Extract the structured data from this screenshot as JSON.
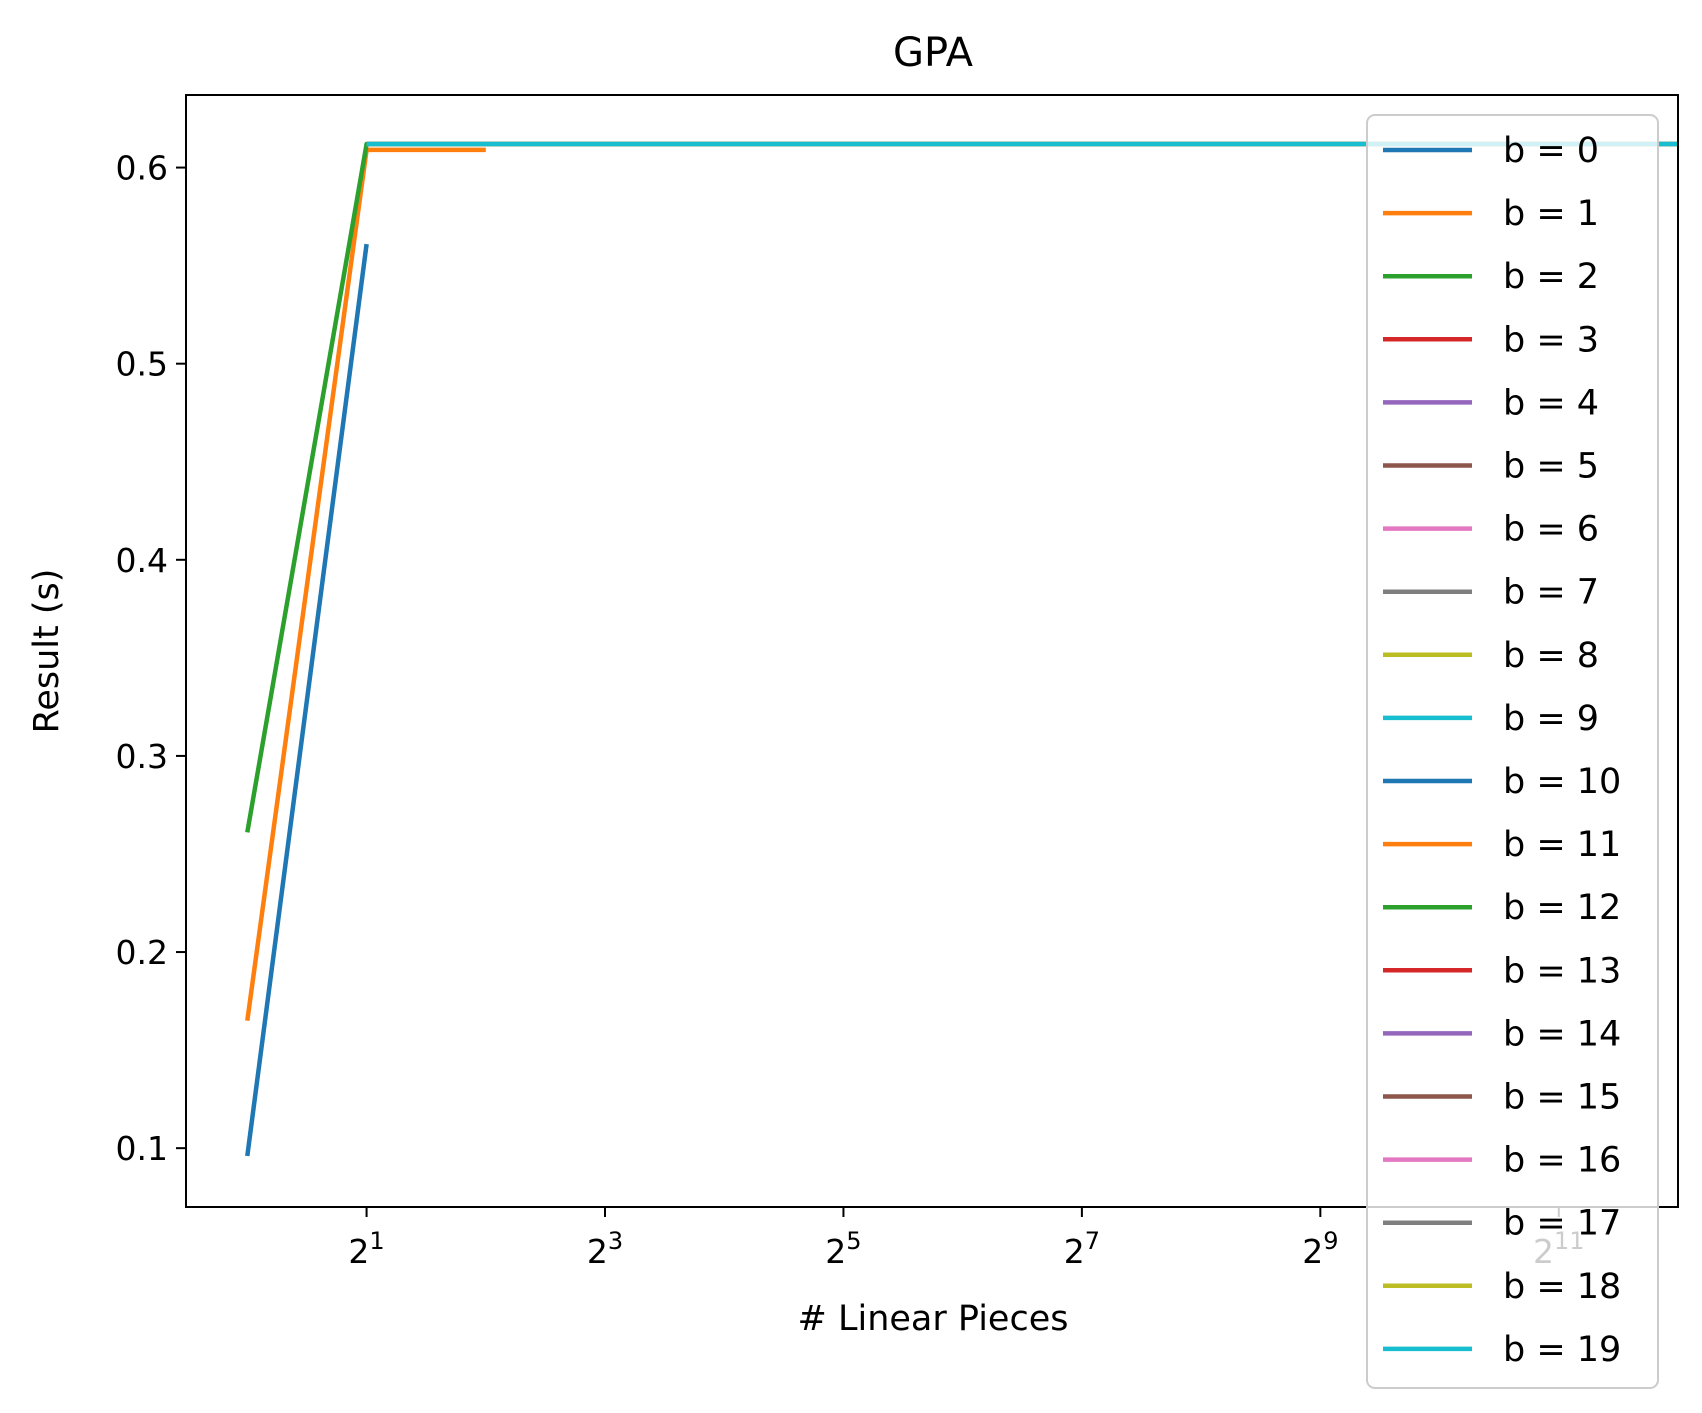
{
  "chart_data": {
    "type": "line",
    "title": "GPA",
    "xlabel": "# Linear Pieces",
    "ylabel": "Result (s)",
    "xscale": "log2",
    "xlim": [
      0.7,
      4096
    ],
    "ylim": [
      0.07,
      0.637
    ],
    "x_ticks": [
      {
        "value": 2,
        "base": "2",
        "exp": "1"
      },
      {
        "value": 8,
        "base": "2",
        "exp": "3"
      },
      {
        "value": 32,
        "base": "2",
        "exp": "5"
      },
      {
        "value": 128,
        "base": "2",
        "exp": "7"
      },
      {
        "value": 512,
        "base": "2",
        "exp": "9"
      },
      {
        "value": 2048,
        "base": "2",
        "exp": "11"
      }
    ],
    "y_ticks": [
      "0.1",
      "0.2",
      "0.3",
      "0.4",
      "0.5",
      "0.6"
    ],
    "grid": false,
    "legend_position": "right",
    "series": [
      {
        "name": "b = 0",
        "color": "#1f77b4",
        "points": [
          [
            1,
            0.096
          ],
          [
            2,
            0.561
          ]
        ]
      },
      {
        "name": "b = 1",
        "color": "#ff7f0e",
        "points": [
          [
            1,
            0.165
          ],
          [
            2,
            0.609
          ],
          [
            4,
            0.609
          ]
        ]
      },
      {
        "name": "b = 2",
        "color": "#2ca02c",
        "points": [
          [
            1,
            0.261
          ],
          [
            2,
            0.612
          ],
          [
            4,
            0.612
          ],
          [
            8,
            0.612
          ],
          [
            16,
            0.612
          ],
          [
            32,
            0.612
          ],
          [
            64,
            0.612
          ],
          [
            128,
            0.612
          ],
          [
            256,
            0.612
          ],
          [
            512,
            0.612
          ],
          [
            1024,
            0.612
          ],
          [
            2048,
            0.612
          ],
          [
            4096,
            0.612
          ]
        ]
      },
      {
        "name": "b = 3",
        "color": "#d62728",
        "points": [
          [
            2,
            0.612
          ],
          [
            4096,
            0.612
          ]
        ]
      },
      {
        "name": "b = 4",
        "color": "#9467bd",
        "points": [
          [
            2,
            0.612
          ],
          [
            4096,
            0.612
          ]
        ]
      },
      {
        "name": "b = 5",
        "color": "#8c564b",
        "points": [
          [
            2,
            0.612
          ],
          [
            4096,
            0.612
          ]
        ]
      },
      {
        "name": "b = 6",
        "color": "#e377c2",
        "points": [
          [
            2,
            0.612
          ],
          [
            4096,
            0.612
          ]
        ]
      },
      {
        "name": "b = 7",
        "color": "#7f7f7f",
        "points": [
          [
            2,
            0.612
          ],
          [
            4096,
            0.612
          ]
        ]
      },
      {
        "name": "b = 8",
        "color": "#bcbd22",
        "points": [
          [
            2,
            0.612
          ],
          [
            4096,
            0.612
          ]
        ]
      },
      {
        "name": "b = 9",
        "color": "#17becf",
        "points": [
          [
            2,
            0.612
          ],
          [
            4096,
            0.612
          ]
        ]
      },
      {
        "name": "b = 10",
        "color": "#1f77b4",
        "points": [
          [
            2,
            0.612
          ],
          [
            4096,
            0.612
          ]
        ]
      },
      {
        "name": "b = 11",
        "color": "#ff7f0e",
        "points": [
          [
            2,
            0.612
          ],
          [
            4096,
            0.612
          ]
        ]
      },
      {
        "name": "b = 12",
        "color": "#2ca02c",
        "points": [
          [
            2,
            0.612
          ],
          [
            4096,
            0.612
          ]
        ]
      },
      {
        "name": "b = 13",
        "color": "#d62728",
        "points": [
          [
            2,
            0.612
          ],
          [
            4096,
            0.612
          ]
        ]
      },
      {
        "name": "b = 14",
        "color": "#9467bd",
        "points": [
          [
            2,
            0.612
          ],
          [
            4096,
            0.612
          ]
        ]
      },
      {
        "name": "b = 15",
        "color": "#8c564b",
        "points": [
          [
            2,
            0.612
          ],
          [
            4096,
            0.612
          ]
        ]
      },
      {
        "name": "b = 16",
        "color": "#e377c2",
        "points": [
          [
            2,
            0.612
          ],
          [
            4096,
            0.612
          ]
        ]
      },
      {
        "name": "b = 17",
        "color": "#7f7f7f",
        "points": [
          [
            2,
            0.612
          ],
          [
            4096,
            0.612
          ]
        ]
      },
      {
        "name": "b = 18",
        "color": "#bcbd22",
        "points": [
          [
            2,
            0.612
          ],
          [
            4096,
            0.612
          ]
        ]
      },
      {
        "name": "b = 19",
        "color": "#17becf",
        "points": [
          [
            2,
            0.612
          ],
          [
            4096,
            0.612
          ]
        ]
      }
    ]
  }
}
